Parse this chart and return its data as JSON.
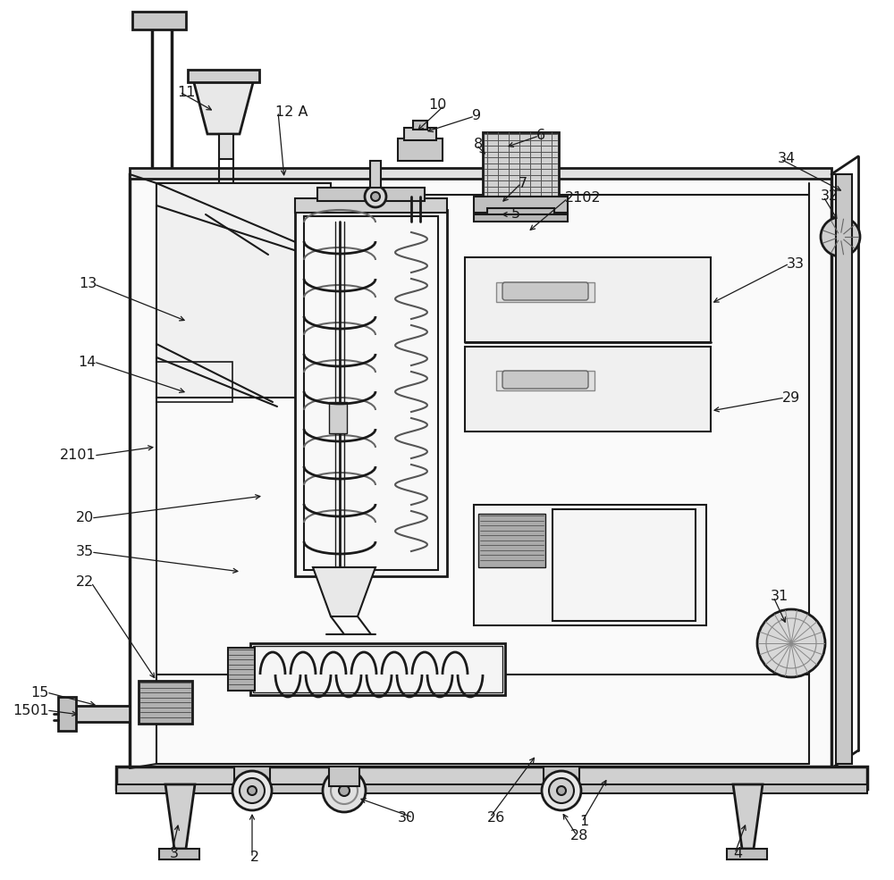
{
  "bg_color": "#ffffff",
  "lc": "#1a1a1a",
  "lc2": "#333333",
  "gray1": "#d8d8d8",
  "gray2": "#c0c0c0",
  "gray3": "#a0a0a0",
  "gray4": "#e8e8e8",
  "gray5": "#f5f5f5",
  "label_fs": 11.5,
  "lw_main": 2.0,
  "lw_mid": 1.5,
  "lw_thin": 1.0
}
